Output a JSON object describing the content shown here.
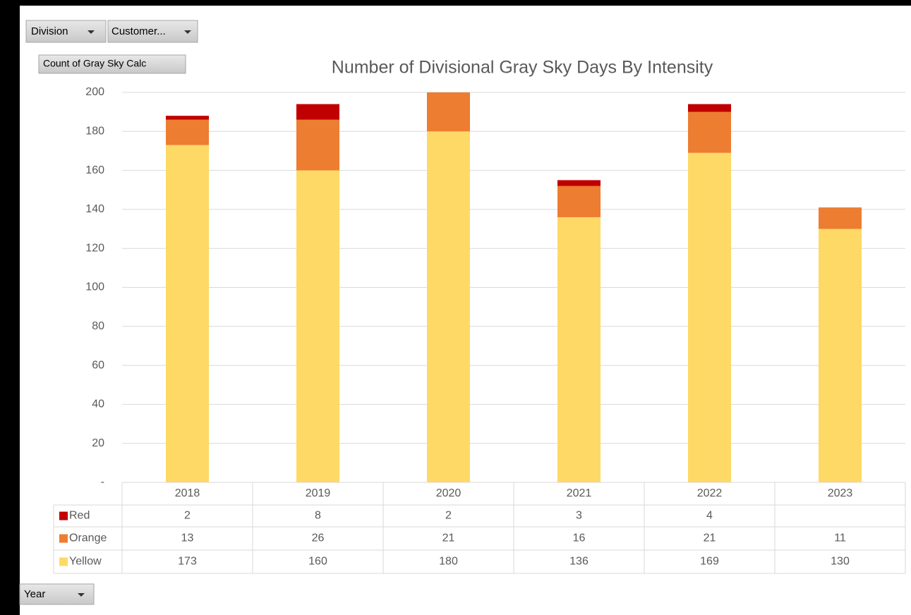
{
  "ui": {
    "division_button": "Division",
    "customer_button": "Customer...",
    "value_button": "Count of Gray Sky Calc",
    "year_button": "Year"
  },
  "chart_data": {
    "type": "bar",
    "stacked": true,
    "title": "Number of Divisional Gray Sky Days By Intensity",
    "categories": [
      "2018",
      "2019",
      "2020",
      "2021",
      "2022",
      "2023"
    ],
    "series": [
      {
        "name": "Red",
        "color": "#c00000",
        "values": [
          2,
          8,
          2,
          3,
          4,
          null
        ]
      },
      {
        "name": "Orange",
        "color": "#ed7d31",
        "values": [
          13,
          26,
          21,
          16,
          21,
          11
        ]
      },
      {
        "name": "Yellow",
        "color": "#ffd966",
        "values": [
          173,
          160,
          180,
          136,
          169,
          130
        ]
      }
    ],
    "ylim": [
      0,
      200
    ],
    "yticks": [
      {
        "value": 0,
        "label": "-"
      },
      20,
      40,
      60,
      80,
      100,
      120,
      140,
      160,
      180,
      200
    ],
    "grid": true,
    "data_table": true
  }
}
